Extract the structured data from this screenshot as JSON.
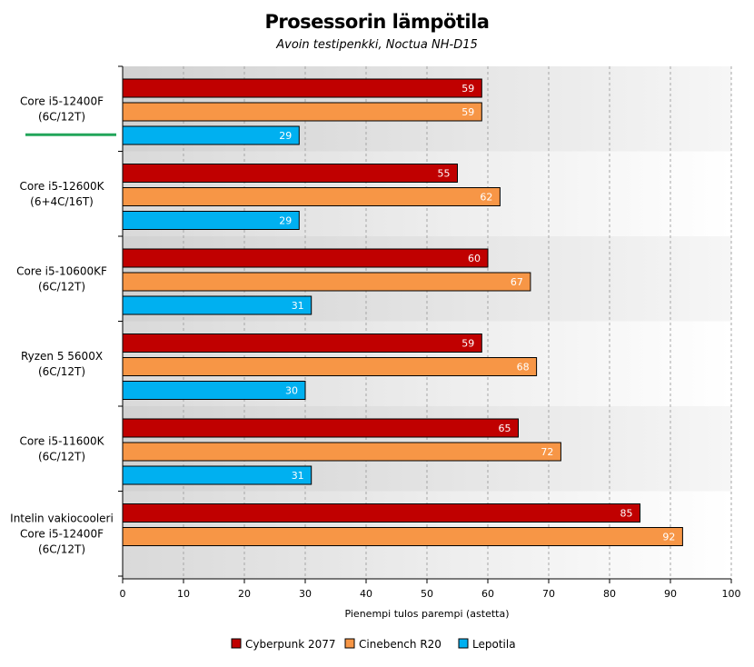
{
  "chart_data": {
    "type": "bar",
    "orientation": "horizontal",
    "title": "Prosessorin lämpötila",
    "subtitle": "Avoin testipenkki, Noctua NH-D15",
    "xlabel": "Pienempi tulos parempi (astetta)",
    "xlim": [
      0,
      100
    ],
    "xticks": [
      "0",
      "10",
      "20",
      "30",
      "40",
      "50",
      "60",
      "70",
      "80",
      "90",
      "100"
    ],
    "grid": true,
    "legend_position": "bottom",
    "highlight_category_index": 0,
    "highlight_color": "#22a55a",
    "categories": [
      [
        "Core i5-12400F",
        "(6C/12T)"
      ],
      [
        "Core i5-12600K",
        "(6+4C/16T)"
      ],
      [
        "Core i5-10600KF",
        "(6C/12T)"
      ],
      [
        "Ryzen 5 5600X",
        "(6C/12T)"
      ],
      [
        "Core i5-11600K",
        "(6C/12T)"
      ],
      [
        "Intelin vakiocooleri",
        "Core i5-12400F",
        "(6C/12T)"
      ]
    ],
    "series": [
      {
        "name": "Cyberpunk 2077",
        "color": "#c00000",
        "values": [
          59,
          55,
          60,
          59,
          65,
          85
        ]
      },
      {
        "name": "Cinebench R20",
        "color": "#f79646",
        "values": [
          59,
          62,
          67,
          68,
          72,
          92
        ]
      },
      {
        "name": "Lepotila",
        "color": "#00b0f0",
        "values": [
          29,
          29,
          31,
          30,
          31,
          null
        ]
      }
    ]
  }
}
